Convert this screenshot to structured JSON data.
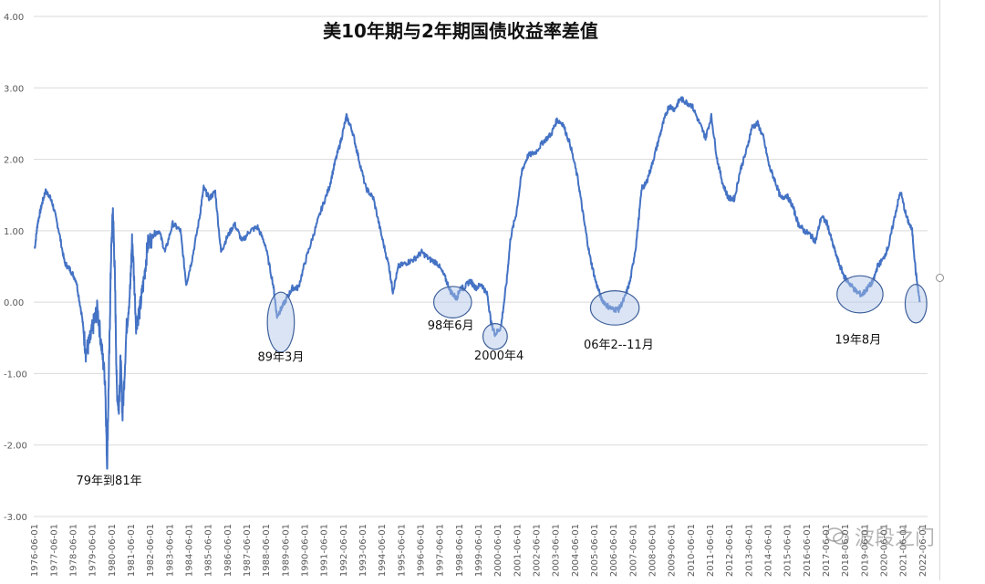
{
  "chart_data": {
    "type": "line",
    "title": "美10年期与2年期国债收益率差值",
    "xlabel": "",
    "ylabel": "",
    "ylim": [
      -3.0,
      4.0
    ],
    "yticks": [
      "4.00",
      "3.00",
      "2.00",
      "1.00",
      "0.00",
      "-1.00",
      "-2.00",
      "-3.00"
    ],
    "xticks": [
      "1976-06-01",
      "1977-06-01",
      "1978-06-01",
      "1979-06-01",
      "1980-06-01",
      "1981-06-01",
      "1982-06-01",
      "1983-06-01",
      "1984-06-01",
      "1985-06-01",
      "1986-06-01",
      "1987-06-01",
      "1988-06-01",
      "1989-06-01",
      "1990-06-01",
      "1991-06-01",
      "1992-06-01",
      "1993-06-01",
      "1994-06-01",
      "1995-06-01",
      "1996-06-01",
      "1997-06-01",
      "1998-06-01",
      "1999-06-01",
      "2000-06-01",
      "2001-06-01",
      "2002-06-01",
      "2003-06-01",
      "2004-06-01",
      "2005-06-01",
      "2006-06-01",
      "2007-06-01",
      "2008-06-01",
      "2009-06-01",
      "2010-06-01",
      "2011-06-01",
      "2012-06-01",
      "2013-06-01",
      "2014-06-01",
      "2015-06-01",
      "2016-06-01",
      "2017-06-01",
      "2018-06-01",
      "2019-06-01",
      "2020-06-01",
      "2021-06-01",
      "2022-06-01"
    ],
    "grid": true,
    "legend": "none",
    "color": "#4472C4",
    "series": [
      {
        "x": [
          1976.45,
          1976.6,
          1976.8,
          1977.0,
          1977.2,
          1977.4,
          1977.7,
          1978.0,
          1978.3,
          1978.6,
          1978.9,
          1979.1,
          1979.3,
          1979.5,
          1979.7,
          1979.9,
          1980.1,
          1980.2,
          1980.3,
          1980.4,
          1980.5,
          1980.6,
          1980.7,
          1980.8,
          1980.9,
          1981.0,
          1981.2,
          1981.4,
          1981.5,
          1981.7,
          1981.9,
          1982.1,
          1982.3,
          1982.6,
          1982.9,
          1983.2,
          1983.6,
          1984.0,
          1984.3,
          1984.6,
          1985.0,
          1985.2,
          1985.5,
          1985.8,
          1986.1,
          1986.4,
          1986.8,
          1987.2,
          1987.6,
          1988.0,
          1988.4,
          1988.8,
          1989.0,
          1989.2,
          1989.5,
          1989.8,
          1990.1,
          1990.5,
          1990.9,
          1991.3,
          1991.7,
          1992.0,
          1992.3,
          1992.6,
          1992.9,
          1993.2,
          1993.6,
          1994.0,
          1994.4,
          1994.8,
          1995.0,
          1995.3,
          1995.7,
          1996.1,
          1996.5,
          1996.9,
          1997.3,
          1997.7,
          1998.0,
          1998.3,
          1998.5,
          1998.7,
          1999.0,
          1999.3,
          1999.6,
          1999.9,
          2000.1,
          2000.3,
          2000.6,
          2000.9,
          2001.1,
          2001.4,
          2001.7,
          2002.0,
          2002.4,
          2002.8,
          2003.2,
          2003.5,
          2003.8,
          2004.2,
          2004.6,
          2004.9,
          2005.2,
          2005.5,
          2005.8,
          2006.1,
          2006.4,
          2006.7,
          2007.0,
          2007.3,
          2007.6,
          2007.9,
          2008.1,
          2008.4,
          2008.7,
          2009.0,
          2009.3,
          2009.6,
          2009.9,
          2010.2,
          2010.5,
          2010.9,
          2011.2,
          2011.5,
          2011.8,
          2012.1,
          2012.4,
          2012.7,
          2013.0,
          2013.3,
          2013.6,
          2013.9,
          2014.2,
          2014.5,
          2014.8,
          2015.1,
          2015.4,
          2015.7,
          2016.0,
          2016.3,
          2016.6,
          2016.9,
          2017.2,
          2017.5,
          2017.8,
          2018.1,
          2018.4,
          2018.7,
          2019.0,
          2019.3,
          2019.6,
          2019.9,
          2020.1,
          2020.4,
          2020.7,
          2021.0,
          2021.3,
          2021.6,
          2021.9,
          2022.1,
          2022.3
        ],
        "values": [
          0.75,
          1.1,
          1.35,
          1.55,
          1.5,
          1.35,
          1.0,
          0.55,
          0.45,
          0.3,
          -0.2,
          -0.7,
          -0.55,
          -0.3,
          -0.1,
          -0.6,
          -1.1,
          -2.3,
          -0.9,
          0.6,
          1.3,
          0.4,
          -1.2,
          -1.5,
          -0.8,
          -1.6,
          -0.4,
          0.2,
          0.9,
          -0.3,
          -0.1,
          0.3,
          0.8,
          0.95,
          1.0,
          0.7,
          1.1,
          1.0,
          0.25,
          0.6,
          1.2,
          1.6,
          1.45,
          1.55,
          0.7,
          0.9,
          1.1,
          0.85,
          1.0,
          1.05,
          0.8,
          0.25,
          -0.2,
          -0.1,
          0.05,
          0.2,
          0.2,
          0.6,
          0.95,
          1.3,
          1.6,
          1.95,
          2.25,
          2.6,
          2.4,
          2.05,
          1.6,
          1.45,
          0.95,
          0.5,
          0.15,
          0.5,
          0.55,
          0.6,
          0.7,
          0.6,
          0.55,
          0.35,
          0.15,
          0.05,
          0.2,
          0.2,
          0.3,
          0.2,
          0.25,
          0.1,
          -0.3,
          -0.45,
          -0.35,
          0.3,
          0.9,
          1.25,
          1.85,
          2.05,
          2.1,
          2.25,
          2.35,
          2.55,
          2.5,
          2.2,
          1.7,
          1.15,
          0.65,
          0.3,
          0.05,
          -0.05,
          -0.1,
          -0.1,
          0.05,
          0.3,
          0.8,
          1.6,
          1.65,
          1.9,
          2.2,
          2.5,
          2.75,
          2.7,
          2.85,
          2.8,
          2.75,
          2.5,
          2.3,
          2.6,
          2.0,
          1.65,
          1.45,
          1.45,
          1.85,
          2.1,
          2.45,
          2.5,
          2.3,
          1.9,
          1.7,
          1.45,
          1.5,
          1.35,
          1.1,
          1.0,
          0.95,
          0.85,
          1.2,
          1.1,
          0.8,
          0.55,
          0.35,
          0.25,
          0.15,
          0.1,
          0.2,
          0.3,
          0.5,
          0.6,
          0.8,
          1.2,
          1.55,
          1.2,
          1.0,
          0.4,
          0.0
        ]
      }
    ],
    "annotations": [
      {
        "text": "79年到81年",
        "x": 1980.3,
        "y": -2.55
      },
      {
        "text": "89年3月",
        "x": 1989.2,
        "y": -0.82,
        "circle_center": [
          1989.2,
          -0.28
        ],
        "circle_size": [
          1.0,
          0.42
        ]
      },
      {
        "text": "98年6月",
        "x": 1998.0,
        "y": -0.38,
        "circle_center": [
          1998.1,
          0.0
        ],
        "circle_size": [
          1.4,
          0.22
        ]
      },
      {
        "text": "2000年4",
        "x": 2000.5,
        "y": -0.8,
        "circle_center": [
          2000.3,
          -0.48
        ],
        "circle_size": [
          0.9,
          0.18
        ]
      },
      {
        "text": "06年2--11月",
        "x": 2006.7,
        "y": -0.65,
        "circle_center": [
          2006.5,
          -0.08
        ],
        "circle_size": [
          1.8,
          0.24
        ]
      },
      {
        "text": "19年8月",
        "x": 2019.1,
        "y": -0.58,
        "circle_center": [
          2019.2,
          0.11
        ],
        "circle_size": [
          1.7,
          0.26
        ]
      },
      {
        "text": "",
        "x": 2022.1,
        "y": 0.0,
        "circle_center": [
          2022.1,
          -0.02
        ],
        "circle_size": [
          0.8,
          0.27
        ]
      }
    ]
  },
  "watermark": "波段之门"
}
